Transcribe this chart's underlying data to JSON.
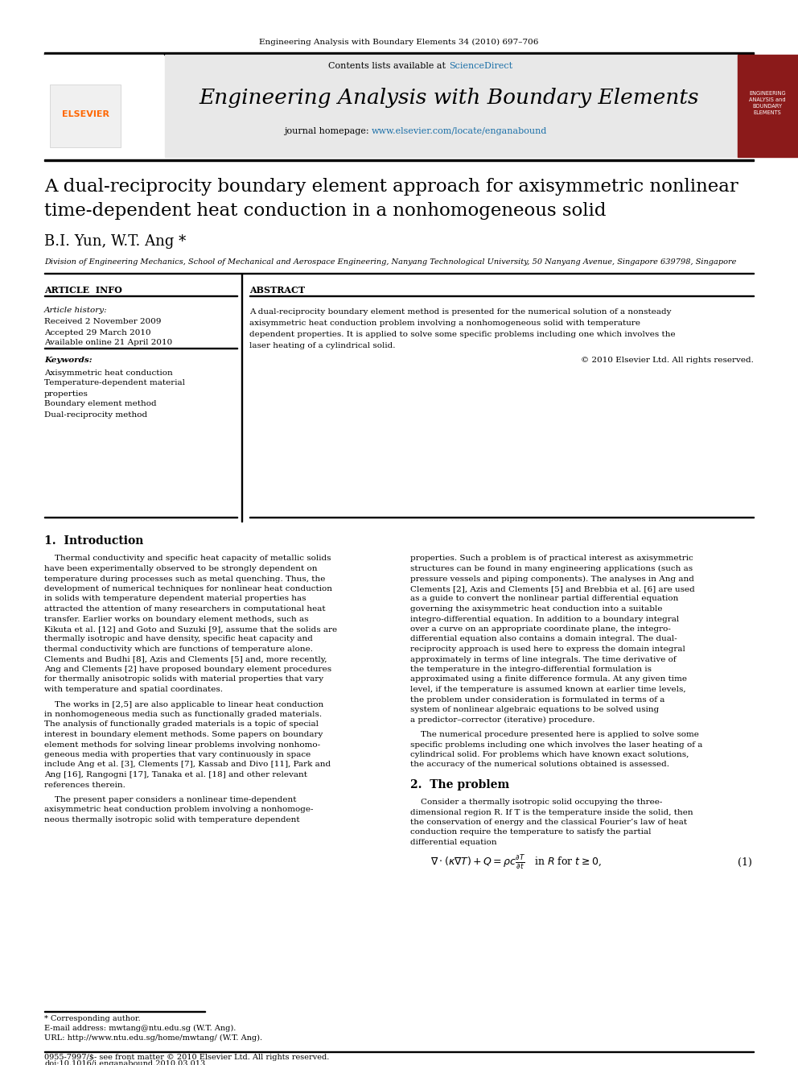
{
  "page_bg": "#ffffff",
  "header_journal": "Engineering Analysis with Boundary Elements 34 (2010) 697–706",
  "journal_banner_bg": "#e8e8e8",
  "journal_banner_text": "Engineering Analysis with Boundary Elements",
  "contents_text": "Contents lists available at ",
  "sciencedirect_text": "ScienceDirect",
  "sciencedirect_color": "#1a6fa8",
  "journal_homepage_text": "journal homepage: ",
  "journal_url": "www.elsevier.com/locate/enganabound",
  "journal_url_color": "#1a6fa8",
  "paper_title_line1": "A dual-reciprocity boundary element approach for axisymmetric nonlinear",
  "paper_title_line2": "time-dependent heat conduction in a nonhomogeneous solid",
  "authors": "B.I. Yun, W.T. Ang *",
  "affiliation": "Division of Engineering Mechanics, School of Mechanical and Aerospace Engineering, Nanyang Technological University, 50 Nanyang Avenue, Singapore 639798, Singapore",
  "section_article_info": "ARTICLE  INFO",
  "section_abstract": "ABSTRACT",
  "article_history_label": "Article history:",
  "received": "Received 2 November 2009",
  "accepted": "Accepted 29 March 2010",
  "available": "Available online 21 April 2010",
  "keywords_label": "Keywords:",
  "keywords": [
    "Axisymmetric heat conduction",
    "Temperature-dependent material",
    "properties",
    "Boundary element method",
    "Dual-reciprocity method"
  ],
  "copyright": "© 2010 Elsevier Ltd. All rights reserved.",
  "section1_title": "1.  Introduction",
  "section2_title": "2.  The problem",
  "eq1_number": "(1)",
  "footnote_star": "* Corresponding author.",
  "footnote_email": "E-mail address: mwtang@ntu.edu.sg (W.T. Ang).",
  "footnote_url": "URL: http://www.ntu.edu.sg/home/mwtang/ (W.T. Ang).",
  "footer_issn": "0955-7997/$- see front matter © 2010 Elsevier Ltd. All rights reserved.",
  "footer_doi": "doi:10.1016/j.enganabound.2010.03.013",
  "elsevier_color": "#ff6600",
  "black": "#000000",
  "dark_gray": "#333333",
  "light_gray": "#cccccc",
  "abstract_lines": [
    "A dual-reciprocity boundary element method is presented for the numerical solution of a nonsteady",
    "axisymmetric heat conduction problem involving a nonhomogeneous solid with temperature",
    "dependent properties. It is applied to solve some specific problems including one which involves the",
    "laser heating of a cylindrical solid."
  ],
  "intro_p1_lines": [
    "    Thermal conductivity and specific heat capacity of metallic solids",
    "have been experimentally observed to be strongly dependent on",
    "temperature during processes such as metal quenching. Thus, the",
    "development of numerical techniques for nonlinear heat conduction",
    "in solids with temperature dependent material properties has",
    "attracted the attention of many researchers in computational heat",
    "transfer. Earlier works on boundary element methods, such as",
    "Kikuta et al. [12] and Goto and Suzuki [9], assume that the solids are",
    "thermally isotropic and have density, specific heat capacity and",
    "thermal conductivity which are functions of temperature alone.",
    "Clements and Budhi [8], Azis and Clements [5] and, more recently,",
    "Ang and Clements [2] have proposed boundary element procedures",
    "for thermally anisotropic solids with material properties that vary",
    "with temperature and spatial coordinates."
  ],
  "intro_p2_lines": [
    "    The works in [2,5] are also applicable to linear heat conduction",
    "in nonhomogeneous media such as functionally graded materials.",
    "The analysis of functionally graded materials is a topic of special",
    "interest in boundary element methods. Some papers on boundary",
    "element methods for solving linear problems involving nonhomo-",
    "geneous media with properties that vary continuously in space",
    "include Ang et al. [3], Clements [7], Kassab and Divo [11], Park and",
    "Ang [16], Rangogni [17], Tanaka et al. [18] and other relevant",
    "references therein."
  ],
  "intro_p3_lines": [
    "    The present paper considers a nonlinear time-dependent",
    "axisymmetric heat conduction problem involving a nonhomoge-",
    "neous thermally isotropic solid with temperature dependent"
  ],
  "intro_c2_lines": [
    "properties. Such a problem is of practical interest as axisymmetric",
    "structures can be found in many engineering applications (such as",
    "pressure vessels and piping components). The analyses in Ang and",
    "Clements [2], Azis and Clements [5] and Brebbia et al. [6] are used",
    "as a guide to convert the nonlinear partial differential equation",
    "governing the axisymmetric heat conduction into a suitable",
    "integro-differential equation. In addition to a boundary integral",
    "over a curve on an appropriate coordinate plane, the integro-",
    "differential equation also contains a domain integral. The dual-",
    "reciprocity approach is used here to express the domain integral",
    "approximately in terms of line integrals. The time derivative of",
    "the temperature in the integro-differential formulation is",
    "approximated using a finite difference formula. At any given time",
    "level, if the temperature is assumed known at earlier time levels,",
    "the problem under consideration is formulated in terms of a",
    "system of nonlinear algebraic equations to be solved using",
    "a predictor–corrector (iterative) procedure."
  ],
  "intro_c2_p2": [
    "    The numerical procedure presented here is applied to solve some",
    "specific problems including one which involves the laser heating of a",
    "cylindrical solid. For problems which have known exact solutions,",
    "the accuracy of the numerical solutions obtained is assessed."
  ],
  "sec2_lines": [
    "    Consider a thermally isotropic solid occupying the three-",
    "dimensional region R. If T is the temperature inside the solid, then",
    "the conservation of energy and the classical Fourier’s law of heat",
    "conduction require the temperature to satisfy the partial",
    "differential equation"
  ]
}
